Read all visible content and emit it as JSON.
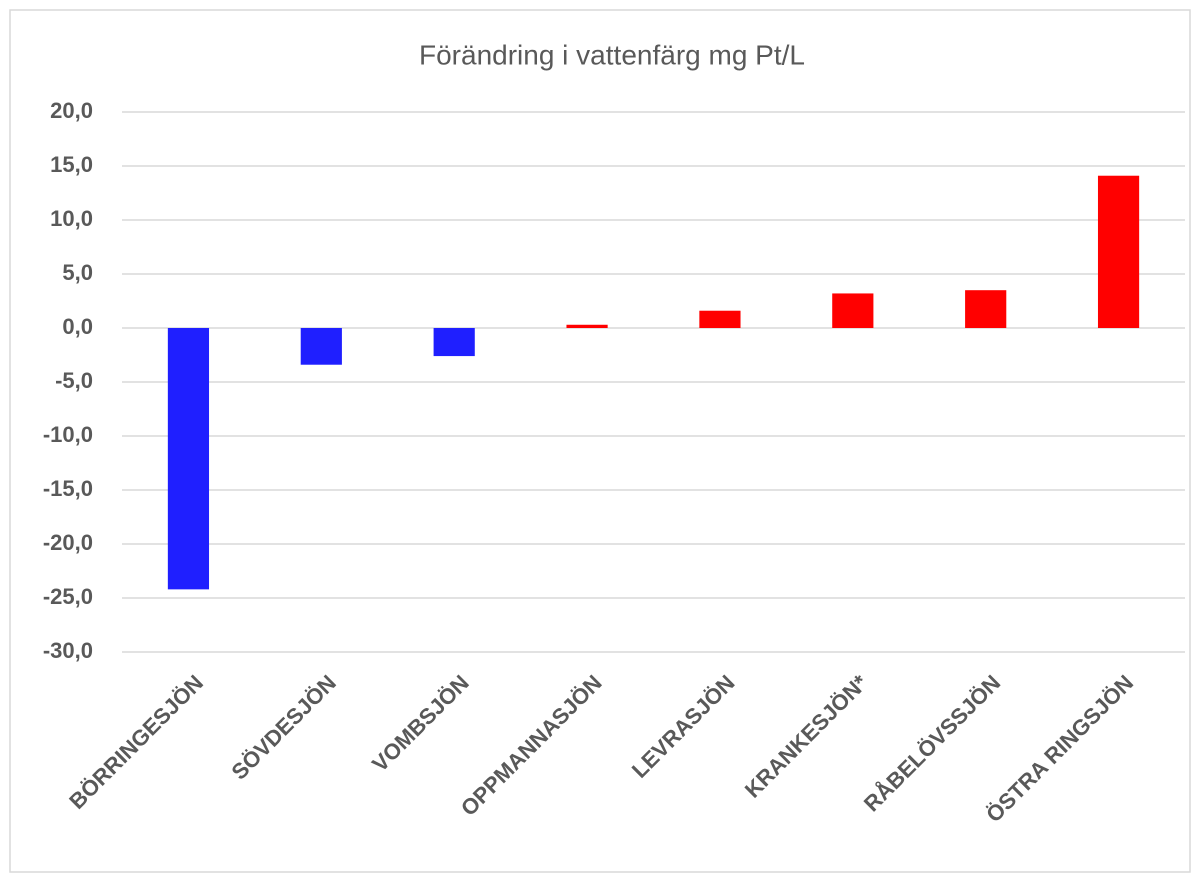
{
  "chart_data": {
    "type": "bar",
    "title": "Förändring i vattenfärg mg Pt/L",
    "categories": [
      "BÖRRINGESJÖN",
      "SÖVDESJÖN",
      "VOMBSJÖN",
      "OPPMANNASJÖN",
      "LEVRASJÖN",
      "KRANKESJÖN*",
      "RÅBELÖVSSJÖN",
      "ÖSTRA RINGSJÖN"
    ],
    "values": [
      -24.2,
      -3.4,
      -2.6,
      0.3,
      1.6,
      3.2,
      3.5,
      14.1
    ],
    "colors": [
      "#1f1fff",
      "#1f1fff",
      "#1f1fff",
      "#ff0000",
      "#ff0000",
      "#ff0000",
      "#ff0000",
      "#ff0000"
    ],
    "ylim": [
      -30,
      20
    ],
    "yticks": [
      {
        "value": -30,
        "label": "-30,0"
      },
      {
        "value": -25,
        "label": "-25,0"
      },
      {
        "value": -20,
        "label": "-20,0"
      },
      {
        "value": -15,
        "label": "-15,0"
      },
      {
        "value": -10,
        "label": "-10,0"
      },
      {
        "value": -5,
        "label": "-5,0"
      },
      {
        "value": 0,
        "label": "0,0"
      },
      {
        "value": 5,
        "label": "5,0"
      },
      {
        "value": 10,
        "label": "10,0"
      },
      {
        "value": 15,
        "label": "15,0"
      },
      {
        "value": 20,
        "label": "20,0"
      }
    ],
    "grid": true
  }
}
